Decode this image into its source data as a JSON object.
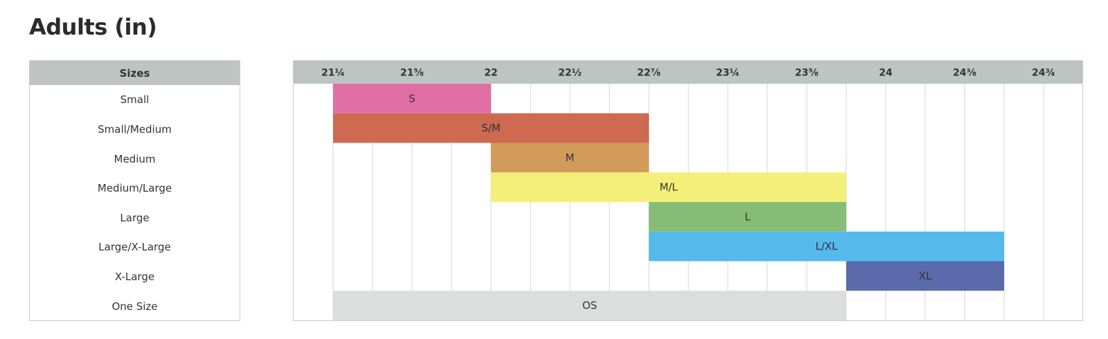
{
  "title": "Adults (in)",
  "sizes_header": "Sizes",
  "chart_data": {
    "type": "bar",
    "orientation": "horizontal-range",
    "x_ticks": [
      "21¼",
      "21⅝",
      "22",
      "22½",
      "22⅞",
      "23¼",
      "23⅝",
      "24",
      "24⅜",
      "24¾"
    ],
    "categories": [
      "Small",
      "Small/Medium",
      "Medium",
      "Medium/Large",
      "Large",
      "Large/X-Large",
      "X-Large",
      "One Size"
    ],
    "bars": [
      {
        "category": "Small",
        "label": "S",
        "start_tick": 0,
        "end_tick": 2,
        "color": "#e06fa6"
      },
      {
        "category": "Small/Medium",
        "label": "S/M",
        "start_tick": 0,
        "end_tick": 4,
        "color": "#cd6a51"
      },
      {
        "category": "Medium",
        "label": "M",
        "start_tick": 2,
        "end_tick": 4,
        "color": "#d39b5a"
      },
      {
        "category": "Medium/Large",
        "label": "M/L",
        "start_tick": 2,
        "end_tick": 6.5,
        "color": "#f4ef78"
      },
      {
        "category": "Large",
        "label": "L",
        "start_tick": 4,
        "end_tick": 6.5,
        "color": "#86bd76"
      },
      {
        "category": "Large/X-Large",
        "label": "L/XL",
        "start_tick": 4,
        "end_tick": 8.5,
        "color": "#55b9ec"
      },
      {
        "category": "X-Large",
        "label": "XL",
        "start_tick": 6.5,
        "end_tick": 8.5,
        "color": "#5a6aaa"
      },
      {
        "category": "One Size",
        "label": "OS",
        "start_tick": 0,
        "end_tick": 6.5,
        "color": "#dcdddd"
      }
    ],
    "header_color": "#bec4c1",
    "grid": true
  }
}
